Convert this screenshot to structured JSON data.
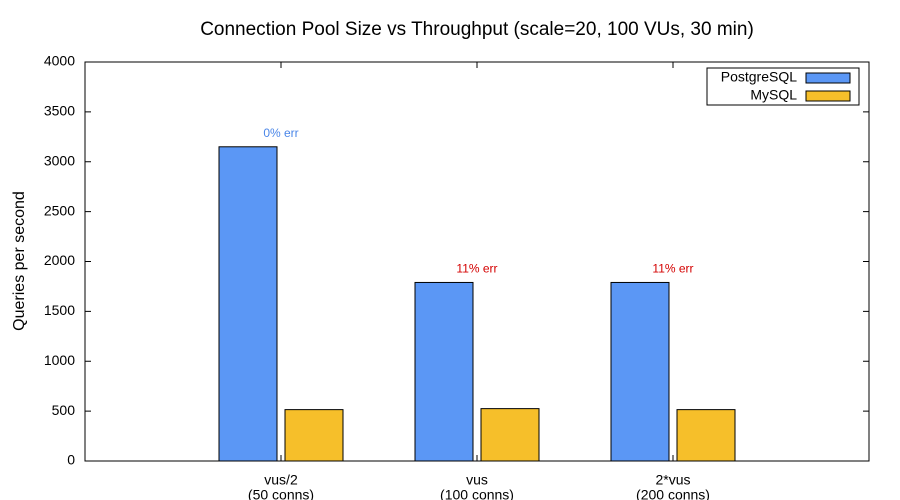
{
  "chart_data": {
    "type": "bar",
    "title": "Connection Pool Size vs Throughput (scale=20, 100 VUs, 30 min)",
    "ylabel": "Queries per second",
    "categories": [
      "vus/2",
      "vus",
      "2*vus"
    ],
    "category_notes": [
      "(50 conns)",
      "(100 conns)",
      "(200 conns)"
    ],
    "series": [
      {
        "name": "PostgreSQL",
        "color": "#5b97f5",
        "values": [
          3150,
          1790,
          1790
        ]
      },
      {
        "name": "MySQL",
        "color": "#f6bf2a",
        "values": [
          515,
          525,
          515
        ]
      }
    ],
    "annotations": [
      "0% err",
      "11% err",
      "11% err"
    ],
    "annotation_colors": [
      "#4a86e8",
      "#d40000",
      "#d40000"
    ],
    "ylim": [
      0,
      4000
    ],
    "yticks": [
      0,
      500,
      1000,
      1500,
      2000,
      2500,
      3000,
      3500,
      4000
    ],
    "legend": "upper right"
  }
}
